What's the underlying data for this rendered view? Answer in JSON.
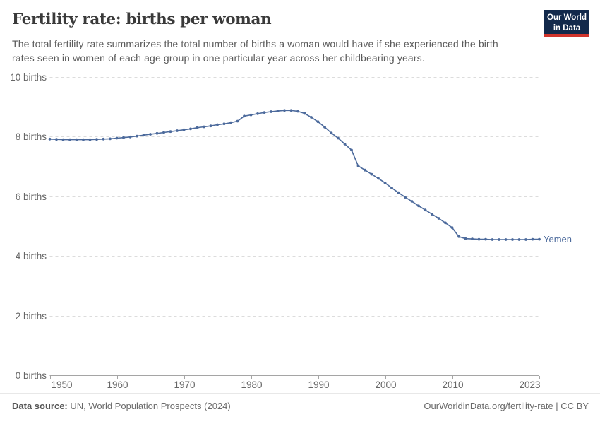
{
  "header": {
    "title": "Fertility rate: births per woman",
    "subtitle_line1": "The total fertility rate summarizes the total number of births a woman would have if she experienced the birth",
    "subtitle_line2": "rates seen in women of each age group in one particular year across her childbearing years.",
    "logo": {
      "line1": "Our World",
      "line2": "in Data",
      "bg_color": "#12294b",
      "accent_color": "#d0342c"
    }
  },
  "chart_data": {
    "type": "line",
    "title": "Fertility rate: births per woman",
    "series": [
      {
        "name": "Yemen",
        "x": [
          1950,
          1951,
          1952,
          1953,
          1954,
          1955,
          1956,
          1957,
          1958,
          1959,
          1960,
          1961,
          1962,
          1963,
          1964,
          1965,
          1966,
          1967,
          1968,
          1969,
          1970,
          1971,
          1972,
          1973,
          1974,
          1975,
          1976,
          1977,
          1978,
          1979,
          1980,
          1981,
          1982,
          1983,
          1984,
          1985,
          1986,
          1987,
          1988,
          1989,
          1990,
          1991,
          1992,
          1993,
          1994,
          1995,
          1996,
          1997,
          1998,
          1999,
          2000,
          2001,
          2002,
          2003,
          2004,
          2005,
          2006,
          2007,
          2008,
          2009,
          2010,
          2011,
          2012,
          2013,
          2014,
          2015,
          2016,
          2017,
          2018,
          2019,
          2020,
          2021,
          2022,
          2023
        ],
        "values": [
          7.92,
          7.91,
          7.9,
          7.9,
          7.9,
          7.9,
          7.9,
          7.91,
          7.92,
          7.93,
          7.95,
          7.97,
          7.99,
          8.02,
          8.05,
          8.08,
          8.11,
          8.14,
          8.17,
          8.2,
          8.23,
          8.26,
          8.3,
          8.33,
          8.36,
          8.4,
          8.43,
          8.47,
          8.52,
          8.69,
          8.73,
          8.77,
          8.81,
          8.84,
          8.86,
          8.88,
          8.88,
          8.85,
          8.78,
          8.65,
          8.5,
          8.32,
          8.12,
          7.95,
          7.75,
          7.55,
          7.02,
          6.88,
          6.74,
          6.6,
          6.45,
          6.28,
          6.12,
          5.97,
          5.83,
          5.68,
          5.54,
          5.4,
          5.26,
          5.11,
          4.95,
          4.65,
          4.58,
          4.57,
          4.56,
          4.56,
          4.55,
          4.55,
          4.55,
          4.55,
          4.55,
          4.55,
          4.56,
          4.56
        ]
      }
    ],
    "ylim": [
      0,
      10
    ],
    "yticks": [
      0,
      2,
      4,
      6,
      8,
      10
    ],
    "ytick_suffix": " births",
    "xticks": [
      1950,
      1960,
      1970,
      1980,
      1990,
      2000,
      2010,
      2023
    ],
    "xlabel": "",
    "ylabel": "",
    "line_color": "#4C6A9C",
    "grid": "horizontal-dashed"
  },
  "footer": {
    "source_label": "Data source:",
    "source_text": " UN, World Population Prospects (2024)",
    "right_text": "OurWorldinData.org/fertility-rate | CC BY"
  }
}
